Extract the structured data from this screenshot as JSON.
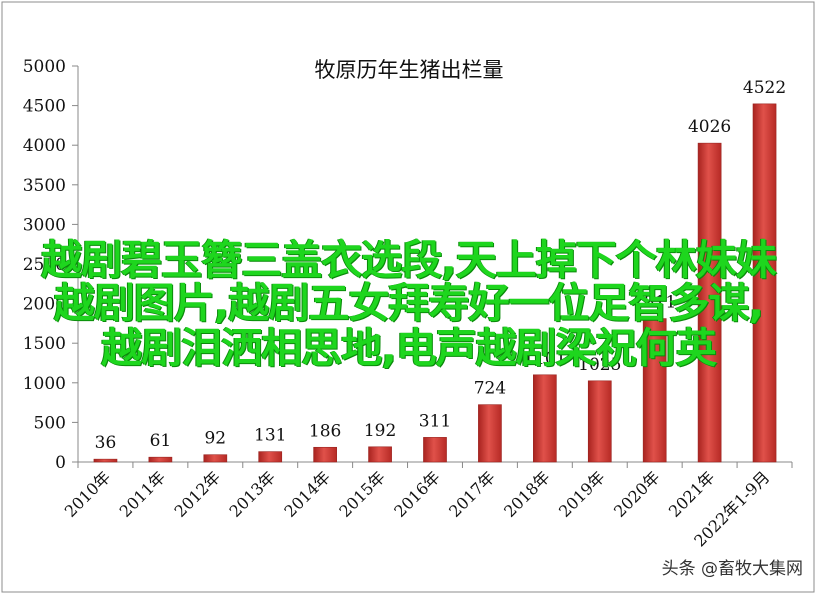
{
  "chart_data": {
    "type": "bar",
    "title": "牧原历年生猪出栏量",
    "categories": [
      "2010年",
      "2011年",
      "2012年",
      "2013年",
      "2014年",
      "2015年",
      "2016年",
      "2017年",
      "2018年",
      "2019年",
      "2020年",
      "2021年",
      "2022年1-9月"
    ],
    "values": [
      36,
      61,
      92,
      131,
      186,
      192,
      311,
      724,
      1101,
      1025,
      1811,
      4026,
      4522
    ],
    "value_labels": [
      "36",
      "61",
      "92",
      "131",
      "186",
      "192",
      "311",
      "724",
      "1101",
      "1025",
      "1811",
      "4026",
      "4522"
    ],
    "ylim": [
      0,
      5000
    ],
    "yticks": [
      "0",
      "500",
      "1000",
      "1500",
      "2000",
      "2500",
      "3000",
      "3500",
      "4000",
      "4500",
      "5000"
    ],
    "bar_color": "#d9403b",
    "grid": false,
    "legend": "none"
  },
  "overlay": {
    "line1": "越剧碧玉簪三盖衣选段,天上掉下个林妹妹",
    "line2": "越剧图片,越剧五女拜寿好一位足智多谋,",
    "line3": "越剧泪洒相思地,电声越剧梁祝何英"
  },
  "watermark": "头条 @畜牧大集网"
}
